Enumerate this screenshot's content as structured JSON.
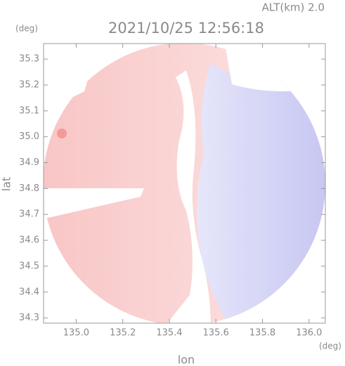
{
  "chart_data": {
    "type": "radar-image",
    "title": "2021/10/25 12:56:18",
    "subtitle": "ALT(km) 2.0",
    "xlabel": "lon",
    "ylabel": "lat",
    "xunit": "(deg)",
    "yunit": "(deg)",
    "xlim": [
      134.86,
      136.07
    ],
    "ylim": [
      34.28,
      35.36
    ],
    "xticks": [
      {
        "value": 135,
        "label": "135.0"
      },
      135.2,
      135.4,
      135.6,
      135.8,
      {
        "value": 136,
        "label": "136.0"
      }
    ],
    "yticks": [
      34.3,
      34.4,
      34.5,
      34.6,
      34.7,
      34.8,
      34.9,
      {
        "value": 35,
        "label": "35.0"
      },
      35.1,
      35.2,
      35.3
    ]
  }
}
